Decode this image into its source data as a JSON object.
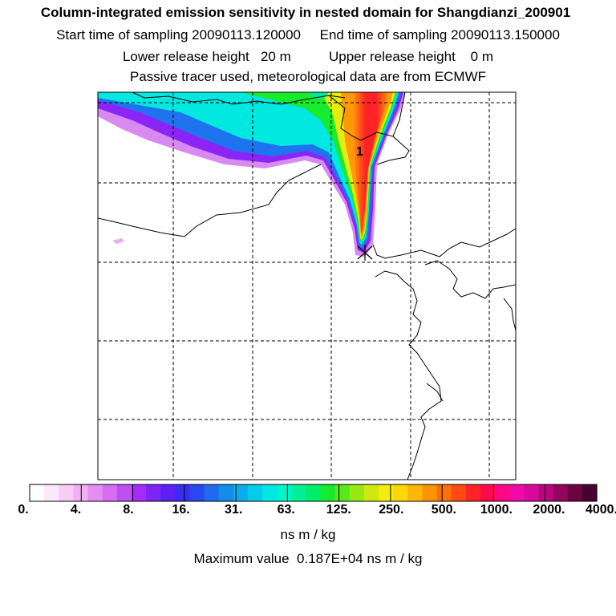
{
  "header": {
    "title": "Column-integrated emission sensitivity in nested domain for Shangdianzi_200901",
    "line1": "Start time of sampling 20090113.120000     End time of sampling 20090113.150000",
    "line2": "Lower release height   20 m          Upper release height    0 m",
    "line3": "Passive tracer used, meteorological data are from ECMWF"
  },
  "map": {
    "point_label": "1",
    "gridlines": "dashed"
  },
  "colorbar": {
    "tick_labels": [
      "0.",
      "4.",
      "8.",
      "16.",
      "31.",
      "63.",
      "125.",
      "250.",
      "500.",
      "1000.",
      "2000.",
      "4000."
    ],
    "colors": [
      "#ffffff",
      "#fde8fb",
      "#f7cdf6",
      "#f0b1f2",
      "#e58ef2",
      "#d56ef3",
      "#c04ef5",
      "#a52cf7",
      "#7e24f6",
      "#5a20f5",
      "#3a2cf3",
      "#2a48f0",
      "#1e6bee",
      "#138cec",
      "#0aadea",
      "#05cce8",
      "#00e8e5",
      "#00f5c8",
      "#00f09a",
      "#00ec6b",
      "#18ea2e",
      "#5ae81a",
      "#98e812",
      "#ccea10",
      "#f4ec0c",
      "#ffd60a",
      "#ffb608",
      "#ff9306",
      "#ff6e08",
      "#ff4a12",
      "#ff2226",
      "#ff0a4e",
      "#ff0a84",
      "#f00aa8",
      "#d8099c",
      "#b8087e",
      "#920660",
      "#6c0444",
      "#480230"
    ],
    "unit": "ns m / kg",
    "max_value_text": "Maximum value  0.187E+04 ns m / kg"
  }
}
